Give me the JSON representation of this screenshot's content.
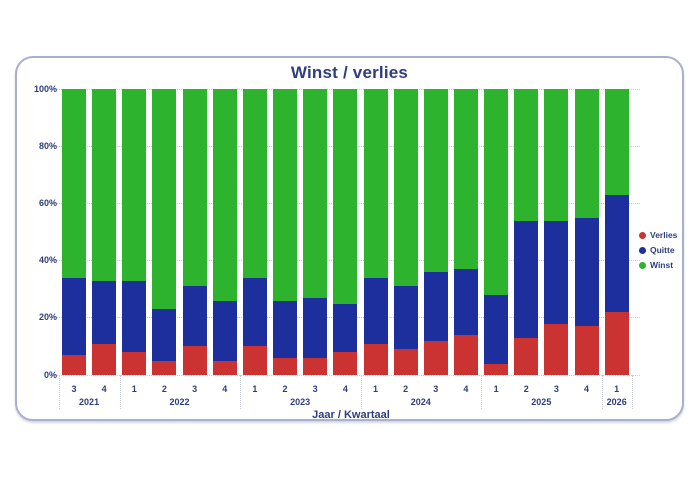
{
  "colors": {
    "page_background": "#ffffff",
    "card_border": "#a9b0cc",
    "text_navy": "#2e3e7c",
    "gridline": "#c6c9d6",
    "verlies_red": "#cb3333",
    "quitte_blue": "#1d2e9d",
    "winst_green": "#2db32d"
  },
  "chart_data": {
    "type": "bar",
    "stacked": true,
    "unit": "%",
    "title": "Winst / verlies",
    "xlabel": "Jaar / Kwartaal",
    "ylim": [
      0,
      100
    ],
    "y_tick_labels": [
      "100%",
      "80%",
      "60%",
      "40%",
      "20%",
      "0%"
    ],
    "grid": "horizontal-dotted",
    "legend_position": "right",
    "categories_quarters": [
      "3",
      "4",
      "1",
      "2",
      "3",
      "4",
      "1",
      "2",
      "3",
      "4",
      "1",
      "2",
      "3",
      "4",
      "1",
      "2",
      "3",
      "4",
      "1"
    ],
    "year_groups": [
      {
        "label": "2021",
        "span": 2
      },
      {
        "label": "2022",
        "span": 4
      },
      {
        "label": "2023",
        "span": 4
      },
      {
        "label": "2024",
        "span": 4
      },
      {
        "label": "2025",
        "span": 4
      },
      {
        "label": "2026",
        "span": 1
      }
    ],
    "series": [
      {
        "name": "Verlies",
        "color": "#cb3333",
        "values": [
          7,
          11,
          8,
          5,
          10,
          5,
          10,
          6,
          6,
          8,
          11,
          9,
          12,
          14,
          4,
          13,
          18,
          17,
          22
        ]
      },
      {
        "name": "Quitte",
        "color": "#1d2e9d",
        "values": [
          27,
          22,
          25,
          18,
          21,
          21,
          24,
          20,
          21,
          17,
          23,
          22,
          24,
          23,
          24,
          41,
          36,
          38,
          41
        ]
      },
      {
        "name": "Winst",
        "color": "#2db32d",
        "values": [
          66,
          67,
          67,
          77,
          69,
          74,
          66,
          74,
          73,
          75,
          66,
          69,
          64,
          63,
          72,
          46,
          46,
          45,
          37
        ]
      }
    ]
  }
}
